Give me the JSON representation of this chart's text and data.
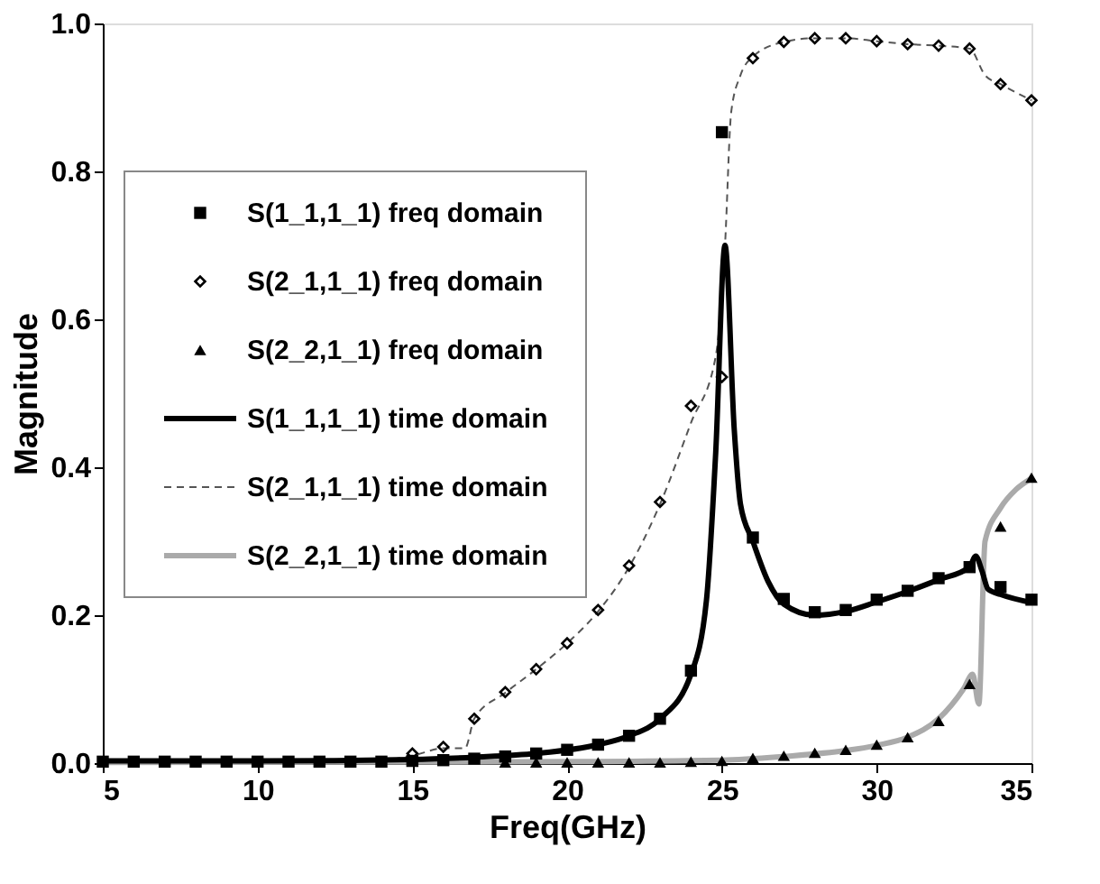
{
  "chart_data": {
    "type": "scatter",
    "xlabel": "Freq(GHz)",
    "ylabel": "Magnitude",
    "xlim": [
      5,
      35
    ],
    "xticks": [
      5,
      10,
      15,
      20,
      25,
      30,
      35
    ],
    "ylim": [
      0,
      1.0
    ],
    "yticks": [
      {
        "value": 0,
        "label": "0.0"
      },
      0.2,
      0.4,
      0.6,
      0.8,
      {
        "value": 1.0,
        "label": "1.0"
      }
    ],
    "grid": false,
    "legend": "left",
    "series": [
      {
        "name": "S(1_1,1_1) freq domain",
        "marker": "square",
        "color": "#000000",
        "x": [
          5,
          6,
          7,
          8,
          9,
          10,
          11,
          12,
          13,
          14,
          15,
          16,
          17,
          18,
          19,
          20,
          21,
          22,
          23,
          24,
          25,
          26,
          27,
          28,
          29,
          30,
          31,
          32,
          33,
          34,
          35
        ],
        "values": [
          0.002,
          0.002,
          0.002,
          0.002,
          0.002,
          0.002,
          0.002,
          0.002,
          0.002,
          0.002,
          0.003,
          0.004,
          0.006,
          0.009,
          0.013,
          0.018,
          0.025,
          0.037,
          0.06,
          0.125,
          0.853,
          0.305,
          0.222,
          0.204,
          0.207,
          0.221,
          0.233,
          0.25,
          0.265,
          0.238,
          0.221
        ]
      },
      {
        "name": "S(2_1,1_1) freq domain",
        "marker": "diamond",
        "color": "#000000",
        "x": [
          15,
          16,
          17,
          18,
          19,
          20,
          21,
          22,
          23,
          24,
          25,
          26,
          27,
          28,
          29,
          30,
          31,
          32,
          33,
          34,
          35
        ],
        "values": [
          0.013,
          0.022,
          0.06,
          0.096,
          0.127,
          0.162,
          0.207,
          0.267,
          0.353,
          0.483,
          0.522,
          0.953,
          0.975,
          0.98,
          0.98,
          0.976,
          0.972,
          0.97,
          0.966,
          0.918,
          0.896
        ]
      },
      {
        "name": "S(2_2,1_1) freq domain",
        "marker": "triangle",
        "color": "#000000",
        "x": [
          18,
          19,
          20,
          21,
          22,
          23,
          24,
          25,
          26,
          27,
          28,
          29,
          30,
          31,
          32,
          33,
          34,
          35
        ],
        "values": [
          0.001,
          0.001,
          0.001,
          0.001,
          0.001,
          0.001,
          0.002,
          0.003,
          0.007,
          0.01,
          0.014,
          0.018,
          0.025,
          0.035,
          0.057,
          0.107,
          0.32,
          0.386
        ]
      },
      {
        "name": "S(1_1,1_1) time domain",
        "type": "line",
        "line_style": "solid",
        "color": "#000000",
        "x": [
          5,
          10,
          15,
          17,
          19,
          21,
          22,
          23,
          24,
          24.5,
          24.8,
          25.1,
          25.4,
          25.6,
          26,
          26.5,
          27,
          28,
          29,
          30,
          31,
          32,
          33,
          33.2,
          33.4,
          33.6,
          34,
          35
        ],
        "values": [
          0.003,
          0.003,
          0.005,
          0.008,
          0.013,
          0.025,
          0.037,
          0.06,
          0.12,
          0.22,
          0.42,
          0.7,
          0.45,
          0.35,
          0.3,
          0.245,
          0.215,
          0.2,
          0.205,
          0.218,
          0.232,
          0.248,
          0.265,
          0.28,
          0.26,
          0.235,
          0.228,
          0.217
        ]
      },
      {
        "name": "S(2_1,1_1) time domain",
        "type": "line",
        "line_style": "dashed",
        "color": "#555555",
        "x": [
          5,
          10,
          14,
          15,
          16,
          16.7,
          17,
          18,
          19,
          20,
          21,
          22,
          23,
          24,
          24.8,
          25.1,
          25.3,
          25.6,
          26,
          27,
          28,
          29,
          30,
          31,
          32,
          33,
          33.5,
          34,
          35
        ],
        "values": [
          0.002,
          0.002,
          0.004,
          0.01,
          0.02,
          0.02,
          0.06,
          0.095,
          0.127,
          0.162,
          0.205,
          0.265,
          0.35,
          0.46,
          0.55,
          0.7,
          0.88,
          0.93,
          0.955,
          0.975,
          0.98,
          0.98,
          0.976,
          0.972,
          0.97,
          0.966,
          0.93,
          0.918,
          0.896
        ]
      },
      {
        "name": "S(2_2,1_1) time domain",
        "type": "line",
        "line_style": "solid",
        "color": "#aaaaaa",
        "x": [
          5,
          20,
          25,
          27,
          29,
          30,
          31,
          32,
          32.8,
          33.1,
          33.3,
          33.5,
          34,
          34.5,
          35
        ],
        "values": [
          0.001,
          0.002,
          0.004,
          0.009,
          0.017,
          0.024,
          0.035,
          0.06,
          0.1,
          0.12,
          0.08,
          0.3,
          0.345,
          0.37,
          0.385
        ]
      }
    ]
  }
}
